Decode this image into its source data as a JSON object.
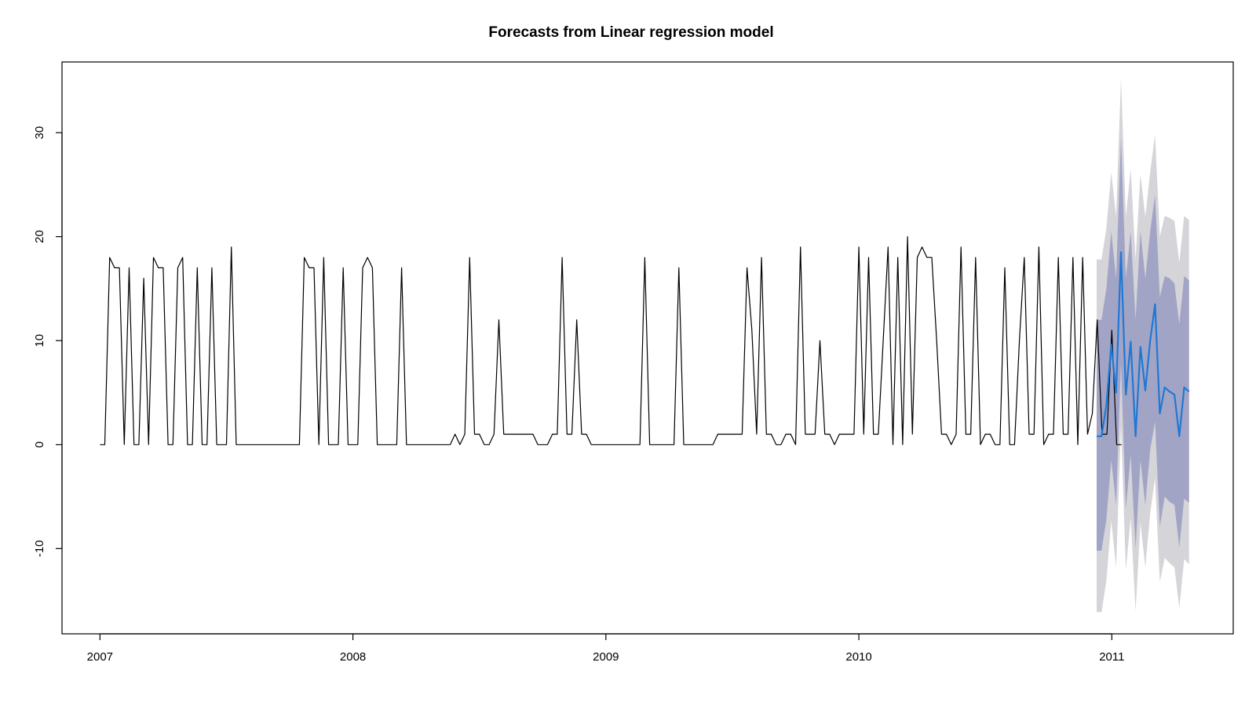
{
  "chart_data": {
    "type": "line",
    "title": "Forecasts from Linear regression model",
    "xlabel": "",
    "ylabel": "",
    "xlim": [
      2006.85,
      2011.48
    ],
    "ylim": [
      -18.2,
      36.8
    ],
    "x_ticks": [
      2007,
      2008,
      2009,
      2010,
      2011
    ],
    "y_ticks": [
      -10,
      0,
      10,
      20,
      30
    ],
    "x_tick_labels": [
      "2007",
      "2008",
      "2009",
      "2010",
      "2011"
    ],
    "y_tick_labels": [
      "-10",
      "0",
      "10",
      "20",
      "30"
    ],
    "grid": false,
    "colors": {
      "observed": "#000000",
      "forecast": "#1f78d4",
      "band80": "#a2a4c6",
      "band95": "#d4d4d9",
      "frame": "#000000"
    },
    "observed": {
      "start": 2007.0,
      "step": 0.019231,
      "values": [
        0,
        0,
        18,
        17,
        17,
        0,
        17,
        0,
        0,
        16,
        0,
        18,
        17,
        17,
        0,
        0,
        17,
        18,
        0,
        0,
        17,
        0,
        0,
        17,
        0,
        0,
        0,
        19,
        0,
        0,
        0,
        0,
        0,
        0,
        0,
        0,
        0,
        0,
        0,
        0,
        0,
        0,
        18,
        17,
        17,
        0,
        18,
        0,
        0,
        0,
        17,
        0,
        0,
        0,
        17,
        18,
        17,
        0,
        0,
        0,
        0,
        0,
        17,
        0,
        0,
        0,
        0,
        0,
        0,
        0,
        0,
        0,
        0,
        1,
        0,
        1,
        18,
        1,
        1,
        0,
        0,
        1,
        12,
        1,
        1,
        1,
        1,
        1,
        1,
        1,
        0,
        0,
        0,
        1,
        1,
        18,
        1,
        1,
        12,
        1,
        1,
        0,
        0,
        0,
        0,
        0,
        0,
        0,
        0,
        0,
        0,
        0,
        18,
        0,
        0,
        0,
        0,
        0,
        0,
        17,
        0,
        0,
        0,
        0,
        0,
        0,
        0,
        1,
        1,
        1,
        1,
        1,
        1,
        17,
        11,
        1,
        18,
        1,
        1,
        0,
        0,
        1,
        1,
        0,
        19,
        1,
        1,
        1,
        10,
        1,
        1,
        0,
        1,
        1,
        1,
        1,
        19,
        1,
        18,
        1,
        1,
        10,
        19,
        0,
        18,
        0,
        20,
        1,
        18,
        19,
        18,
        18,
        10,
        1,
        1,
        0,
        1,
        19,
        1,
        1,
        18,
        0,
        1,
        1,
        0,
        0,
        17,
        0,
        0,
        10,
        18,
        1,
        1,
        19,
        0,
        1,
        1,
        18,
        1,
        1,
        18,
        0,
        18,
        1,
        3,
        12,
        1,
        1,
        11,
        0,
        0
      ]
    },
    "forecast": {
      "start": 2010.94,
      "step": 0.019231,
      "mean": [
        0.8,
        0.8,
        3.8,
        9.6,
        5.0,
        18.5,
        4.8,
        9.9,
        0.8,
        9.4,
        5.2,
        10.0,
        13.5,
        3.0,
        5.5,
        5.1,
        4.8,
        0.8,
        5.5,
        5.1
      ],
      "lower80": [
        -10.2,
        -10.2,
        -7.2,
        -1.5,
        -5.8,
        7.8,
        -6.2,
        -1.0,
        -10.0,
        -1.5,
        -5.8,
        -0.5,
        2.2,
        -7.9,
        -5.0,
        -5.5,
        -5.8,
        -9.9,
        -5.2,
        -5.6
      ],
      "upper80": [
        12.0,
        12.0,
        15.0,
        20.5,
        16.0,
        29.5,
        16.0,
        20.5,
        12.0,
        20.5,
        16.0,
        20.5,
        24.0,
        14.2,
        16.2,
        16.0,
        15.5,
        11.6,
        16.2,
        15.8
      ],
      "lower95": [
        -16.1,
        -16.1,
        -13.1,
        -7.3,
        -11.8,
        1.8,
        -12.1,
        -7.0,
        -16.0,
        -7.5,
        -11.8,
        -6.6,
        -3.2,
        -13.2,
        -10.9,
        -11.4,
        -11.8,
        -15.7,
        -11.0,
        -11.5
      ],
      "upper95": [
        17.8,
        17.8,
        20.8,
        26.2,
        21.9,
        35.2,
        21.9,
        26.5,
        17.8,
        26.0,
        21.9,
        26.2,
        29.8,
        20.0,
        22.0,
        21.8,
        21.5,
        17.5,
        22.0,
        21.6
      ]
    }
  }
}
